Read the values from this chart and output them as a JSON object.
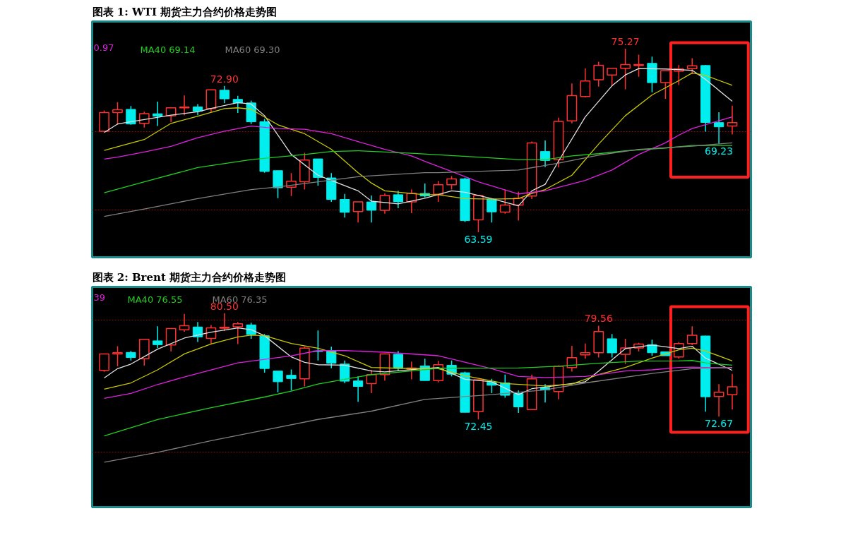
{
  "chart_data": [
    {
      "type": "candlestick",
      "title": "图表 1: WTI 期货主力合约价格走势图",
      "categories": [
        null,
        null,
        null,
        null,
        null,
        null,
        null,
        null,
        null,
        null,
        null,
        null,
        null,
        null,
        null,
        null,
        null,
        null,
        null,
        null,
        null,
        null,
        null,
        null,
        null,
        null,
        null,
        null,
        null,
        null,
        null,
        null,
        null,
        null,
        null,
        null,
        null,
        null,
        null,
        null,
        null,
        null,
        null,
        null,
        null,
        null,
        null,
        null
      ],
      "ohlc": [
        [
          70.02,
          71.34,
          69.99,
          71.21
        ],
        [
          71.21,
          71.87,
          70.43,
          71.39
        ],
        [
          71.41,
          71.62,
          70.43,
          70.48
        ],
        [
          70.52,
          71.26,
          70.25,
          71.14
        ],
        [
          71.13,
          71.9,
          70.35,
          70.98
        ],
        [
          71.01,
          71.56,
          70.6,
          71.51
        ],
        [
          71.51,
          72.3,
          71.04,
          71.56
        ],
        [
          71.57,
          71.74,
          71.04,
          71.29
        ],
        [
          71.46,
          72.66,
          71.24,
          72.66
        ],
        [
          72.63,
          72.9,
          71.8,
          72.08
        ],
        [
          72.05,
          72.27,
          71.18,
          71.82
        ],
        [
          71.82,
          71.97,
          70.48,
          70.62
        ],
        [
          70.63,
          70.8,
          67.38,
          67.46
        ],
        [
          67.51,
          67.51,
          65.76,
          66.42
        ],
        [
          66.46,
          67.35,
          65.9,
          66.84
        ],
        [
          66.8,
          68.65,
          66.31,
          68.19
        ],
        [
          68.26,
          68.26,
          66.56,
          67.08
        ],
        [
          67.05,
          67.35,
          65.52,
          65.68
        ],
        [
          65.68,
          66.03,
          64.53,
          64.86
        ],
        [
          64.91,
          65.52,
          64.21,
          65.52
        ],
        [
          65.52,
          65.93,
          64.21,
          64.99
        ],
        [
          64.99,
          66.06,
          64.77,
          65.93
        ],
        [
          65.98,
          66.23,
          65.12,
          65.53
        ],
        [
          65.52,
          66.31,
          64.81,
          66.06
        ],
        [
          66.06,
          66.69,
          65.81,
          65.9
        ],
        [
          66.01,
          66.85,
          65.52,
          66.61
        ],
        [
          66.61,
          67.17,
          66.31,
          66.99
        ],
        [
          66.99,
          67.08,
          64.25,
          64.33
        ],
        [
          64.38,
          65.93,
          63.59,
          65.93
        ],
        [
          65.7,
          65.73,
          64.21,
          64.89
        ],
        [
          64.87,
          66.31,
          64.77,
          65.32
        ],
        [
          65.32,
          66.18,
          64.33,
          65.76
        ],
        [
          65.9,
          69.36,
          65.7,
          69.28
        ],
        [
          68.73,
          69.43,
          67.74,
          68.16
        ],
        [
          68.21,
          70.88,
          67.71,
          70.65
        ],
        [
          70.68,
          73.06,
          70.52,
          72.28
        ],
        [
          72.23,
          74.01,
          72.17,
          73.22
        ],
        [
          73.29,
          74.44,
          72.86,
          74.21
        ],
        [
          73.6,
          74.03,
          72.89,
          74.03
        ],
        [
          74.03,
          75.27,
          72.69,
          74.26
        ],
        [
          74.2,
          74.89,
          73.49,
          74.26
        ],
        [
          74.34,
          74.77,
          72.5,
          73.11
        ],
        [
          73.12,
          73.88,
          72.08,
          73.88
        ],
        [
          73.85,
          74.23,
          72.96,
          73.98
        ],
        [
          74.0,
          74.67,
          73.65,
          74.18
        ],
        [
          74.2,
          74.23,
          69.99,
          70.58
        ],
        [
          70.57,
          71.23,
          69.23,
          70.3
        ],
        [
          70.35,
          71.64,
          69.81,
          70.57
        ]
      ],
      "colors": [
        "#ff3030",
        "#ff3030",
        "#00eeee",
        "#ff3030",
        "#00eeee",
        "#ff3030",
        "#ff3030",
        "#00eeee",
        "#ff3030",
        "#00eeee",
        "#00eeee",
        "#00eeee",
        "#00eeee",
        "#00eeee",
        "#ff3030",
        "#ff3030",
        "#00eeee",
        "#00eeee",
        "#00eeee",
        "#ff3030",
        "#00eeee",
        "#ff3030",
        "#00eeee",
        "#ff3030",
        "#00eeee",
        "#ff3030",
        "#ff3030",
        "#00eeee",
        "#ff3030",
        "#00eeee",
        "#ff3030",
        "#ff3030",
        "#ff3030",
        "#00eeee",
        "#ff3030",
        "#ff3030",
        "#ff3030",
        "#ff3030",
        "#ff3030",
        "#ff3030",
        "#ff3030",
        "#00eeee",
        "#ff3030",
        "#ff3030",
        "#ff3030",
        "#00eeee",
        "#00eeee",
        "#ff3030"
      ],
      "series": [
        {
          "type": "line",
          "color": "#e0e0e0",
          "values": [
            69.94,
            70.48,
            null,
            70.76,
            null,
            71.04,
            null,
            71.26,
            71.47,
            null,
            71.84,
            71.75,
            71.01,
            null,
            68.54,
            null,
            67.22,
            66.89,
            null,
            66.23,
            65.57,
            null,
            65.4,
            null,
            65.76,
            null,
            66.23,
            66.14,
            null,
            65.73,
            null,
            65.27,
            66.23,
            66.64,
            68.12,
            null,
            70.93,
            null,
            72.91,
            73.6,
            74.01,
            null,
            73.98,
            null,
            73.9,
            73.32,
            null,
            71.92
          ]
        },
        {
          "type": "line",
          "color": "#c8c800",
          "values": [
            68.8,
            69.03,
            null,
            69.49,
            null,
            70.52,
            null,
            70.98,
            null,
            71.46,
            71.51,
            71.42,
            null,
            70.43,
            null,
            69.86,
            null,
            68.87,
            null,
            67.38,
            66.72,
            66.23,
            null,
            66.06,
            65.98,
            65.98,
            null,
            65.73,
            null,
            65.7,
            null,
            65.73,
            66.06,
            66.31,
            null,
            67.22,
            null,
            69.2,
            null,
            71.01,
            null,
            72.33,
            null,
            73.24,
            73.73,
            73.57,
            null,
            72.94
          ]
        },
        {
          "type": "line",
          "name": "0.97",
          "color": "#e020e0",
          "values": [
            68.25,
            68.37,
            null,
            68.7,
            null,
            69.06,
            null,
            69.61,
            null,
            70.02,
            null,
            70.35,
            null,
            70.19,
            null,
            70.15,
            null,
            69.86,
            null,
            69.36,
            null,
            68.87,
            null,
            68.45,
            68.1,
            null,
            67.46,
            null,
            66.8,
            null,
            null,
            66.03,
            null,
            66.23,
            null,
            null,
            66.89,
            null,
            67.55,
            null,
            68.54,
            null,
            69.28,
            69.77,
            70.19,
            null,
            null,
            70.93
          ]
        },
        {
          "type": "line",
          "name": "MA40 69.14",
          "color": "#20d020",
          "values": [
            66.1,
            null,
            null,
            66.8,
            null,
            null,
            null,
            67.71,
            null,
            null,
            null,
            68.21,
            null,
            null,
            null,
            68.54,
            null,
            68.73,
            null,
            68.78,
            null,
            null,
            null,
            68.62,
            null,
            null,
            null,
            null,
            68.37,
            null,
            null,
            68.21,
            null,
            68.21,
            null,
            68.45,
            null,
            68.59,
            null,
            68.78,
            null,
            null,
            68.95,
            null,
            69.11,
            null,
            null,
            69.11
          ]
        },
        {
          "type": "line",
          "name": "MA60 69.30",
          "color": "#808080",
          "values": [
            64.6,
            null,
            null,
            65.07,
            null,
            null,
            null,
            65.73,
            null,
            null,
            null,
            66.31,
            null,
            66.47,
            null,
            null,
            66.8,
            null,
            null,
            67.13,
            null,
            null,
            null,
            null,
            67.38,
            67.38,
            null,
            null,
            null,
            null,
            null,
            67.55,
            null,
            null,
            67.99,
            null,
            null,
            68.5,
            null,
            null,
            68.87,
            null,
            null,
            null,
            69.07,
            null,
            null,
            69.28
          ]
        }
      ],
      "ylim": [
        62.0,
        77.0
      ],
      "yticks": [
        {
          "value": 65,
          "label": null
        },
        {
          "value": 70,
          "label": null
        }
      ],
      "grid": "y",
      "tick_labels": false,
      "legend": "top left",
      "annotations": [
        {
          "text": "72.90",
          "y": 72.9
        },
        {
          "text": "75.27",
          "y": 75.27
        },
        {
          "text": "63.59",
          "y": 63.59
        },
        {
          "text": "69.23",
          "y": 69.23
        }
      ]
    },
    {
      "type": "candlestick",
      "title": "图表 2: Brent 期货主力合约价格走势图",
      "categories": [
        null,
        null,
        null,
        null,
        null,
        null,
        null,
        null,
        null,
        null,
        null,
        null,
        null,
        null,
        null,
        null,
        null,
        null,
        null,
        null,
        null,
        null,
        null,
        null,
        null,
        null,
        null,
        null,
        null,
        null,
        null,
        null,
        null,
        null,
        null,
        null,
        null,
        null,
        null,
        null,
        null,
        null,
        null,
        null,
        null,
        null,
        null,
        null
      ],
      "ohlc": [
        [
          76.17,
          77.41,
          76.06,
          77.41
        ],
        [
          77.41,
          78.0,
          76.48,
          77.51
        ],
        [
          77.53,
          77.64,
          76.92,
          77.15
        ],
        [
          77.05,
          78.53,
          76.53,
          78.53
        ],
        [
          78.41,
          79.52,
          77.87,
          78.12
        ],
        [
          78.1,
          79.34,
          77.6,
          79.34
        ],
        [
          79.25,
          80.45,
          79.1,
          79.55
        ],
        [
          79.46,
          79.84,
          78.32,
          78.71
        ],
        [
          78.59,
          79.61,
          78.14,
          79.39
        ],
        [
          79.37,
          80.5,
          79.16,
          79.43
        ],
        [
          79.48,
          79.84,
          78.17,
          79.7
        ],
        [
          79.62,
          79.78,
          78.57,
          78.89
        ],
        [
          78.8,
          78.93,
          75.99,
          76.31
        ],
        [
          76.12,
          76.12,
          74.51,
          75.31
        ],
        [
          75.8,
          76.24,
          74.65,
          75.55
        ],
        [
          75.53,
          77.96,
          74.95,
          77.85
        ],
        [
          77.64,
          79.19,
          76.92,
          77.6
        ],
        [
          77.67,
          77.96,
          76.33,
          76.71
        ],
        [
          76.65,
          76.92,
          75.19,
          75.35
        ],
        [
          75.37,
          75.71,
          73.79,
          74.95
        ],
        [
          75.17,
          76.21,
          74.45,
          75.85
        ],
        [
          75.85,
          77.46,
          75.4,
          77.41
        ],
        [
          77.39,
          77.64,
          76.12,
          76.33
        ],
        [
          76.26,
          76.83,
          75.49,
          76.35
        ],
        [
          76.51,
          77.05,
          75.4,
          75.4
        ],
        [
          75.4,
          76.89,
          75.26,
          76.6
        ],
        [
          76.56,
          76.92,
          75.72,
          75.88
        ],
        [
          75.99,
          76.08,
          72.99,
          72.99
        ],
        [
          73.04,
          75.46,
          72.45,
          75.46
        ],
        [
          75.26,
          75.53,
          74.45,
          75.04
        ],
        [
          75.22,
          75.85,
          74.1,
          74.28
        ],
        [
          74.42,
          74.65,
          72.95,
          73.4
        ],
        [
          73.2,
          75.85,
          73.2,
          75.53
        ],
        [
          74.87,
          75.13,
          73.74,
          74.69
        ],
        [
          74.56,
          76.56,
          73.97,
          76.48
        ],
        [
          76.39,
          78.03,
          76.08,
          77.14
        ],
        [
          77.35,
          78.21,
          77.05,
          77.51
        ],
        [
          77.51,
          79.56,
          77.15,
          79.12
        ],
        [
          78.57,
          78.93,
          77.15,
          77.5
        ],
        [
          77.39,
          78.57,
          76.65,
          77.87
        ],
        [
          77.87,
          78.26,
          77.6,
          78.16
        ],
        [
          78.12,
          78.5,
          77.28,
          77.51
        ],
        [
          77.58,
          77.58,
          77.28,
          77.28
        ],
        [
          77.19,
          78.32,
          77.05,
          78.21
        ],
        [
          78.21,
          79.52,
          78.09,
          78.84
        ],
        [
          78.78,
          78.8,
          73.04,
          74.17
        ],
        [
          74.19,
          75.13,
          72.67,
          74.51
        ],
        [
          74.33,
          75.9,
          73.2,
          74.92
        ]
      ],
      "colors": [
        "#ff3030",
        "#ff3030",
        "#00eeee",
        "#ff3030",
        "#00eeee",
        "#ff3030",
        "#ff3030",
        "#00eeee",
        "#ff3030",
        "#ff3030",
        "#ff3030",
        "#00eeee",
        "#00eeee",
        "#00eeee",
        "#00eeee",
        "#ff3030",
        "#00eeee",
        "#00eeee",
        "#00eeee",
        "#00eeee",
        "#ff3030",
        "#ff3030",
        "#00eeee",
        "#ff3030",
        "#00eeee",
        "#ff3030",
        "#00eeee",
        "#00eeee",
        "#ff3030",
        "#00eeee",
        "#00eeee",
        "#00eeee",
        "#ff3030",
        "#00eeee",
        "#ff3030",
        "#ff3030",
        "#ff3030",
        "#ff3030",
        "#00eeee",
        "#ff3030",
        "#ff3030",
        "#00eeee",
        "#00eeee",
        "#ff3030",
        "#ff3030",
        "#00eeee",
        "#ff3030",
        "#ff3030"
      ],
      "series": [
        {
          "type": "line",
          "color": "#e0e0e0",
          "values": [
            75.6,
            76.3,
            76.65,
            null,
            77.78,
            null,
            78.62,
            null,
            79.07,
            null,
            79.39,
            79.25,
            78.8,
            null,
            77.19,
            76.78,
            76.6,
            null,
            76.56,
            null,
            76.12,
            76.06,
            null,
            null,
            null,
            76.39,
            null,
            75.49,
            null,
            75.31,
            null,
            74.33,
            74.78,
            null,
            75.04,
            null,
            75.31,
            76.12,
            null,
            77.82,
            null,
            78.09,
            null,
            77.82,
            78.0,
            77.1,
            null,
            76.17
          ]
        },
        {
          "type": "line",
          "color": "#c8c800",
          "values": [
            74.75,
            null,
            75.22,
            null,
            76.21,
            null,
            77.42,
            null,
            78.17,
            null,
            78.71,
            78.84,
            78.8,
            null,
            78.21,
            null,
            77.85,
            null,
            77.28,
            null,
            76.39,
            null,
            76.33,
            null,
            null,
            76.3,
            null,
            75.76,
            null,
            null,
            75.17,
            null,
            null,
            74.99,
            null,
            75.13,
            null,
            75.85,
            null,
            76.39,
            null,
            77.1,
            null,
            77.73,
            77.85,
            77.64,
            null,
            76.89
          ]
        },
        {
          "type": "line",
          "name": "39",
          "color": "#e020e0",
          "values": [
            74.05,
            null,
            74.42,
            null,
            75.1,
            null,
            75.67,
            null,
            76.21,
            null,
            76.74,
            null,
            77.01,
            null,
            77.28,
            null,
            77.67,
            null,
            77.67,
            null,
            null,
            77.55,
            null,
            null,
            null,
            77.28,
            null,
            null,
            null,
            76.3,
            null,
            75.71,
            null,
            75.63,
            null,
            null,
            75.71,
            null,
            null,
            76.12,
            null,
            76.21,
            null,
            76.39,
            76.42,
            76.39,
            null,
            76.35
          ]
        },
        {
          "type": "line",
          "name": "MA40 76.55",
          "color": "#20d020",
          "values": [
            71.2,
            null,
            null,
            null,
            72.45,
            null,
            null,
            null,
            73.34,
            null,
            null,
            null,
            74.15,
            null,
            74.6,
            null,
            75.13,
            null,
            75.49,
            null,
            75.85,
            null,
            76.03,
            null,
            null,
            76.33,
            null,
            null,
            null,
            null,
            null,
            76.35,
            null,
            null,
            76.48,
            null,
            null,
            76.71,
            null,
            null,
            76.87,
            null,
            null,
            76.89,
            76.92,
            76.74,
            null,
            76.56
          ]
        },
        {
          "type": "line",
          "name": "MA60 76.35",
          "color": "#808080",
          "values": [
            69.2,
            null,
            null,
            null,
            69.95,
            null,
            null,
            null,
            70.84,
            null,
            null,
            null,
            71.64,
            null,
            null,
            null,
            72.45,
            null,
            null,
            null,
            73.08,
            null,
            null,
            null,
            73.97,
            null,
            null,
            null,
            null,
            74.33,
            null,
            null,
            null,
            74.69,
            null,
            null,
            75.22,
            null,
            null,
            null,
            null,
            75.94,
            null,
            null,
            76.3,
            null,
            null,
            76.39
          ]
        }
      ],
      "ylim": [
        65.8,
        82.5
      ],
      "yticks": [
        {
          "value": 70,
          "label": null
        },
        {
          "value": 80,
          "label": null
        }
      ],
      "grid": "y",
      "tick_labels": false,
      "legend": "top left",
      "annotations": [
        {
          "text": "80.50",
          "y": 80.5
        },
        {
          "text": "72.45",
          "y": 72.45
        },
        {
          "text": "79.56",
          "y": 79.56
        },
        {
          "text": "72.67",
          "y": 72.67
        }
      ]
    }
  ]
}
